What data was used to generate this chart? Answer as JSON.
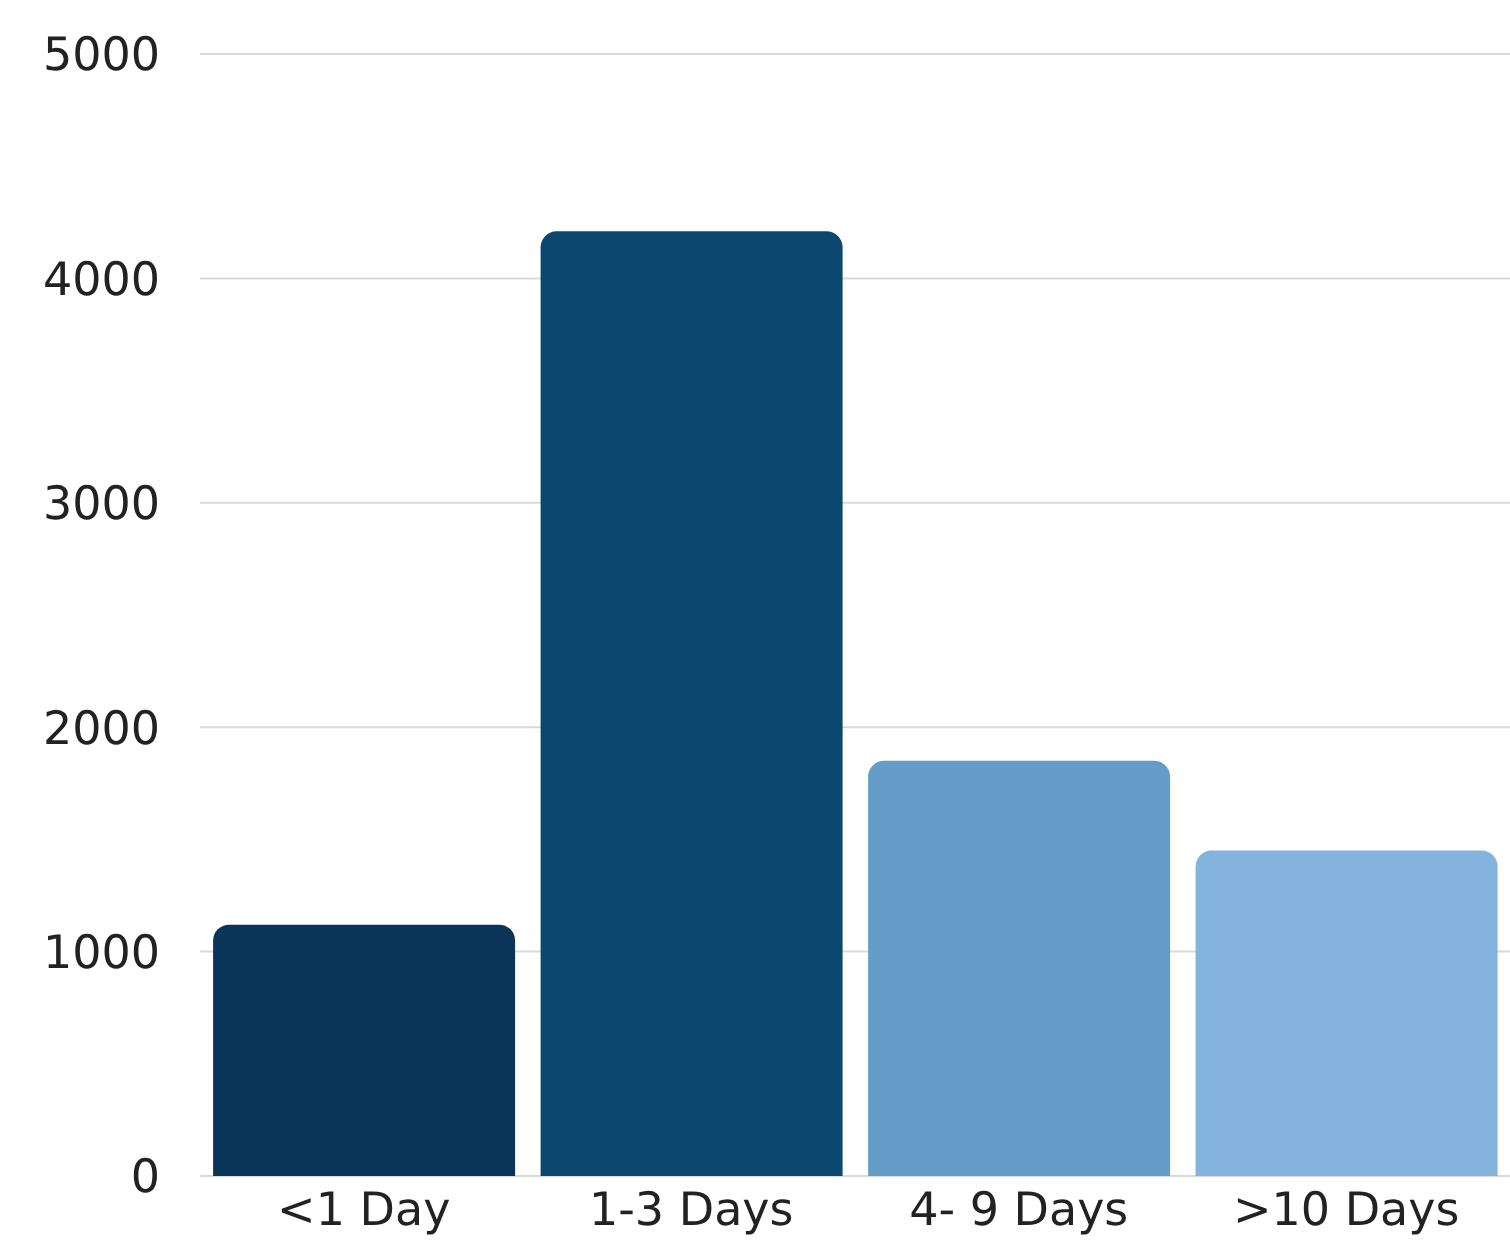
{
  "chart_data": {
    "type": "bar",
    "categories": [
      "<1 Day",
      "1-3 Days",
      "4- 9 Days",
      ">10 Days"
    ],
    "values": [
      1120,
      4210,
      1850,
      1450
    ],
    "colors": [
      "#0a3559",
      "#0b486f",
      "#659dc9",
      "#84b3de"
    ],
    "ylim": [
      0,
      5000
    ],
    "yticks": [
      0,
      1000,
      2000,
      3000,
      4000,
      5000
    ],
    "grid": "y"
  }
}
